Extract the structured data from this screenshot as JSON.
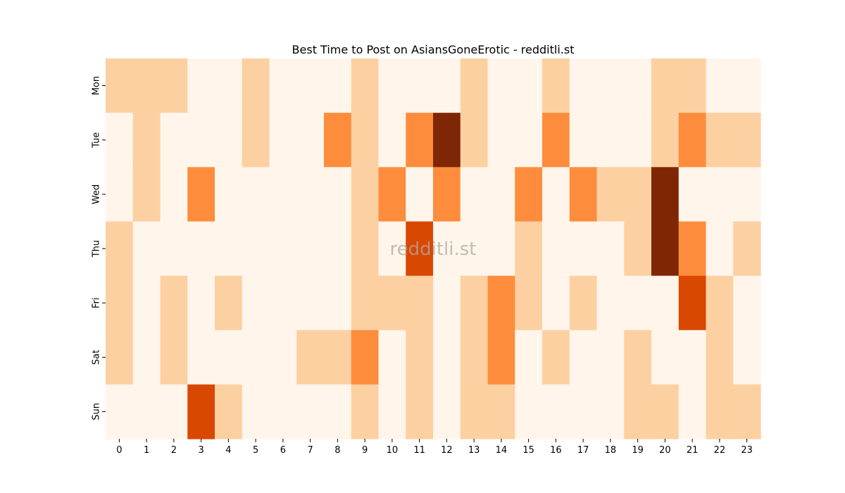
{
  "chart_data": {
    "type": "heatmap",
    "title": "Best Time to Post on AsiansGoneErotic - redditli.st",
    "watermark": "redditli.st",
    "x": [
      "0",
      "1",
      "2",
      "3",
      "4",
      "5",
      "6",
      "7",
      "8",
      "9",
      "10",
      "11",
      "12",
      "13",
      "14",
      "15",
      "16",
      "17",
      "18",
      "19",
      "20",
      "21",
      "22",
      "23"
    ],
    "y": [
      "Mon",
      "Tue",
      "Wed",
      "Thu",
      "Fri",
      "Sat",
      "Sun"
    ],
    "values": [
      [
        1,
        1,
        1,
        0,
        0,
        1,
        0,
        0,
        0,
        1,
        0,
        0,
        0,
        1,
        0,
        0,
        1,
        0,
        0,
        0,
        1,
        1,
        0,
        0
      ],
      [
        0,
        1,
        0,
        0,
        0,
        1,
        0,
        0,
        2,
        1,
        0,
        2,
        4,
        1,
        0,
        0,
        2,
        0,
        0,
        0,
        1,
        2,
        1,
        1
      ],
      [
        0,
        1,
        0,
        2,
        0,
        0,
        0,
        0,
        0,
        1,
        2,
        0,
        2,
        0,
        0,
        2,
        0,
        2,
        1,
        1,
        4,
        0,
        0,
        0
      ],
      [
        1,
        0,
        0,
        0,
        0,
        0,
        0,
        0,
        0,
        1,
        0,
        3,
        0,
        0,
        0,
        1,
        0,
        0,
        0,
        1,
        4,
        2,
        0,
        1
      ],
      [
        1,
        0,
        1,
        0,
        1,
        0,
        0,
        0,
        0,
        1,
        1,
        1,
        0,
        1,
        2,
        1,
        0,
        1,
        0,
        0,
        0,
        3,
        1,
        0
      ],
      [
        1,
        0,
        1,
        0,
        0,
        0,
        0,
        1,
        1,
        2,
        0,
        1,
        0,
        1,
        2,
        0,
        1,
        0,
        0,
        1,
        0,
        0,
        1,
        0
      ],
      [
        0,
        0,
        0,
        3,
        1,
        0,
        0,
        0,
        0,
        1,
        0,
        1,
        0,
        1,
        1,
        0,
        0,
        0,
        0,
        1,
        1,
        0,
        1,
        1
      ]
    ],
    "colormap": [
      "#fff5eb",
      "#fdd0a2",
      "#fd8d3c",
      "#d94801",
      "#7f2704"
    ],
    "vmin": 0,
    "vmax": 4
  }
}
